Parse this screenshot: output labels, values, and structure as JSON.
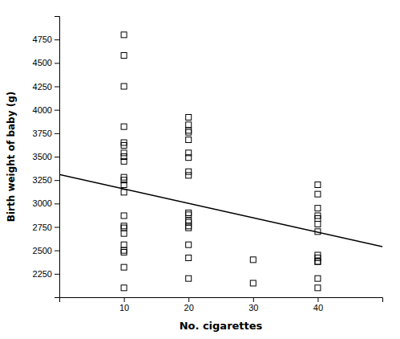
{
  "chart_data": {
    "type": "scatter",
    "xlabel": "No. cigarettes",
    "ylabel": "Birth weight of baby (g)",
    "xlim": [
      0,
      50
    ],
    "ylim": [
      2000,
      5000
    ],
    "xticks": [
      10,
      20,
      30,
      40
    ],
    "yticks": [
      2250,
      2500,
      2750,
      3000,
      3250,
      3500,
      3750,
      4000,
      4250,
      4500,
      4750
    ],
    "grid": false,
    "series": [
      {
        "type": "scatter",
        "marker": "square",
        "color": "black",
        "x": [
          10,
          10,
          10,
          10,
          10,
          10,
          10,
          10,
          10,
          10,
          10,
          10,
          10,
          10,
          10,
          10,
          10,
          10,
          10,
          10,
          10,
          10,
          20,
          20,
          20,
          20,
          20,
          20,
          20,
          20,
          20,
          20,
          20,
          20,
          20,
          20,
          20,
          20,
          20,
          20,
          30,
          30,
          40,
          40,
          40,
          40,
          40,
          40,
          40,
          40,
          40,
          40,
          40,
          40,
          40
        ],
        "values": [
          4800,
          4580,
          4250,
          3820,
          3650,
          3620,
          3540,
          3500,
          3450,
          3280,
          3250,
          3200,
          3120,
          2870,
          2760,
          2740,
          2680,
          2560,
          2500,
          2480,
          2320,
          2100,
          3920,
          3840,
          3780,
          3760,
          3680,
          3540,
          3490,
          3340,
          3300,
          2900,
          2880,
          2820,
          2800,
          2760,
          2740,
          2560,
          2420,
          2200,
          2400,
          2150,
          3200,
          3100,
          2950,
          2870,
          2840,
          2780,
          2700,
          2450,
          2420,
          2380,
          2380,
          2200,
          2100
        ]
      },
      {
        "type": "line",
        "color": "black",
        "x": [
          0,
          50
        ],
        "values": [
          3310,
          2540
        ]
      }
    ]
  }
}
